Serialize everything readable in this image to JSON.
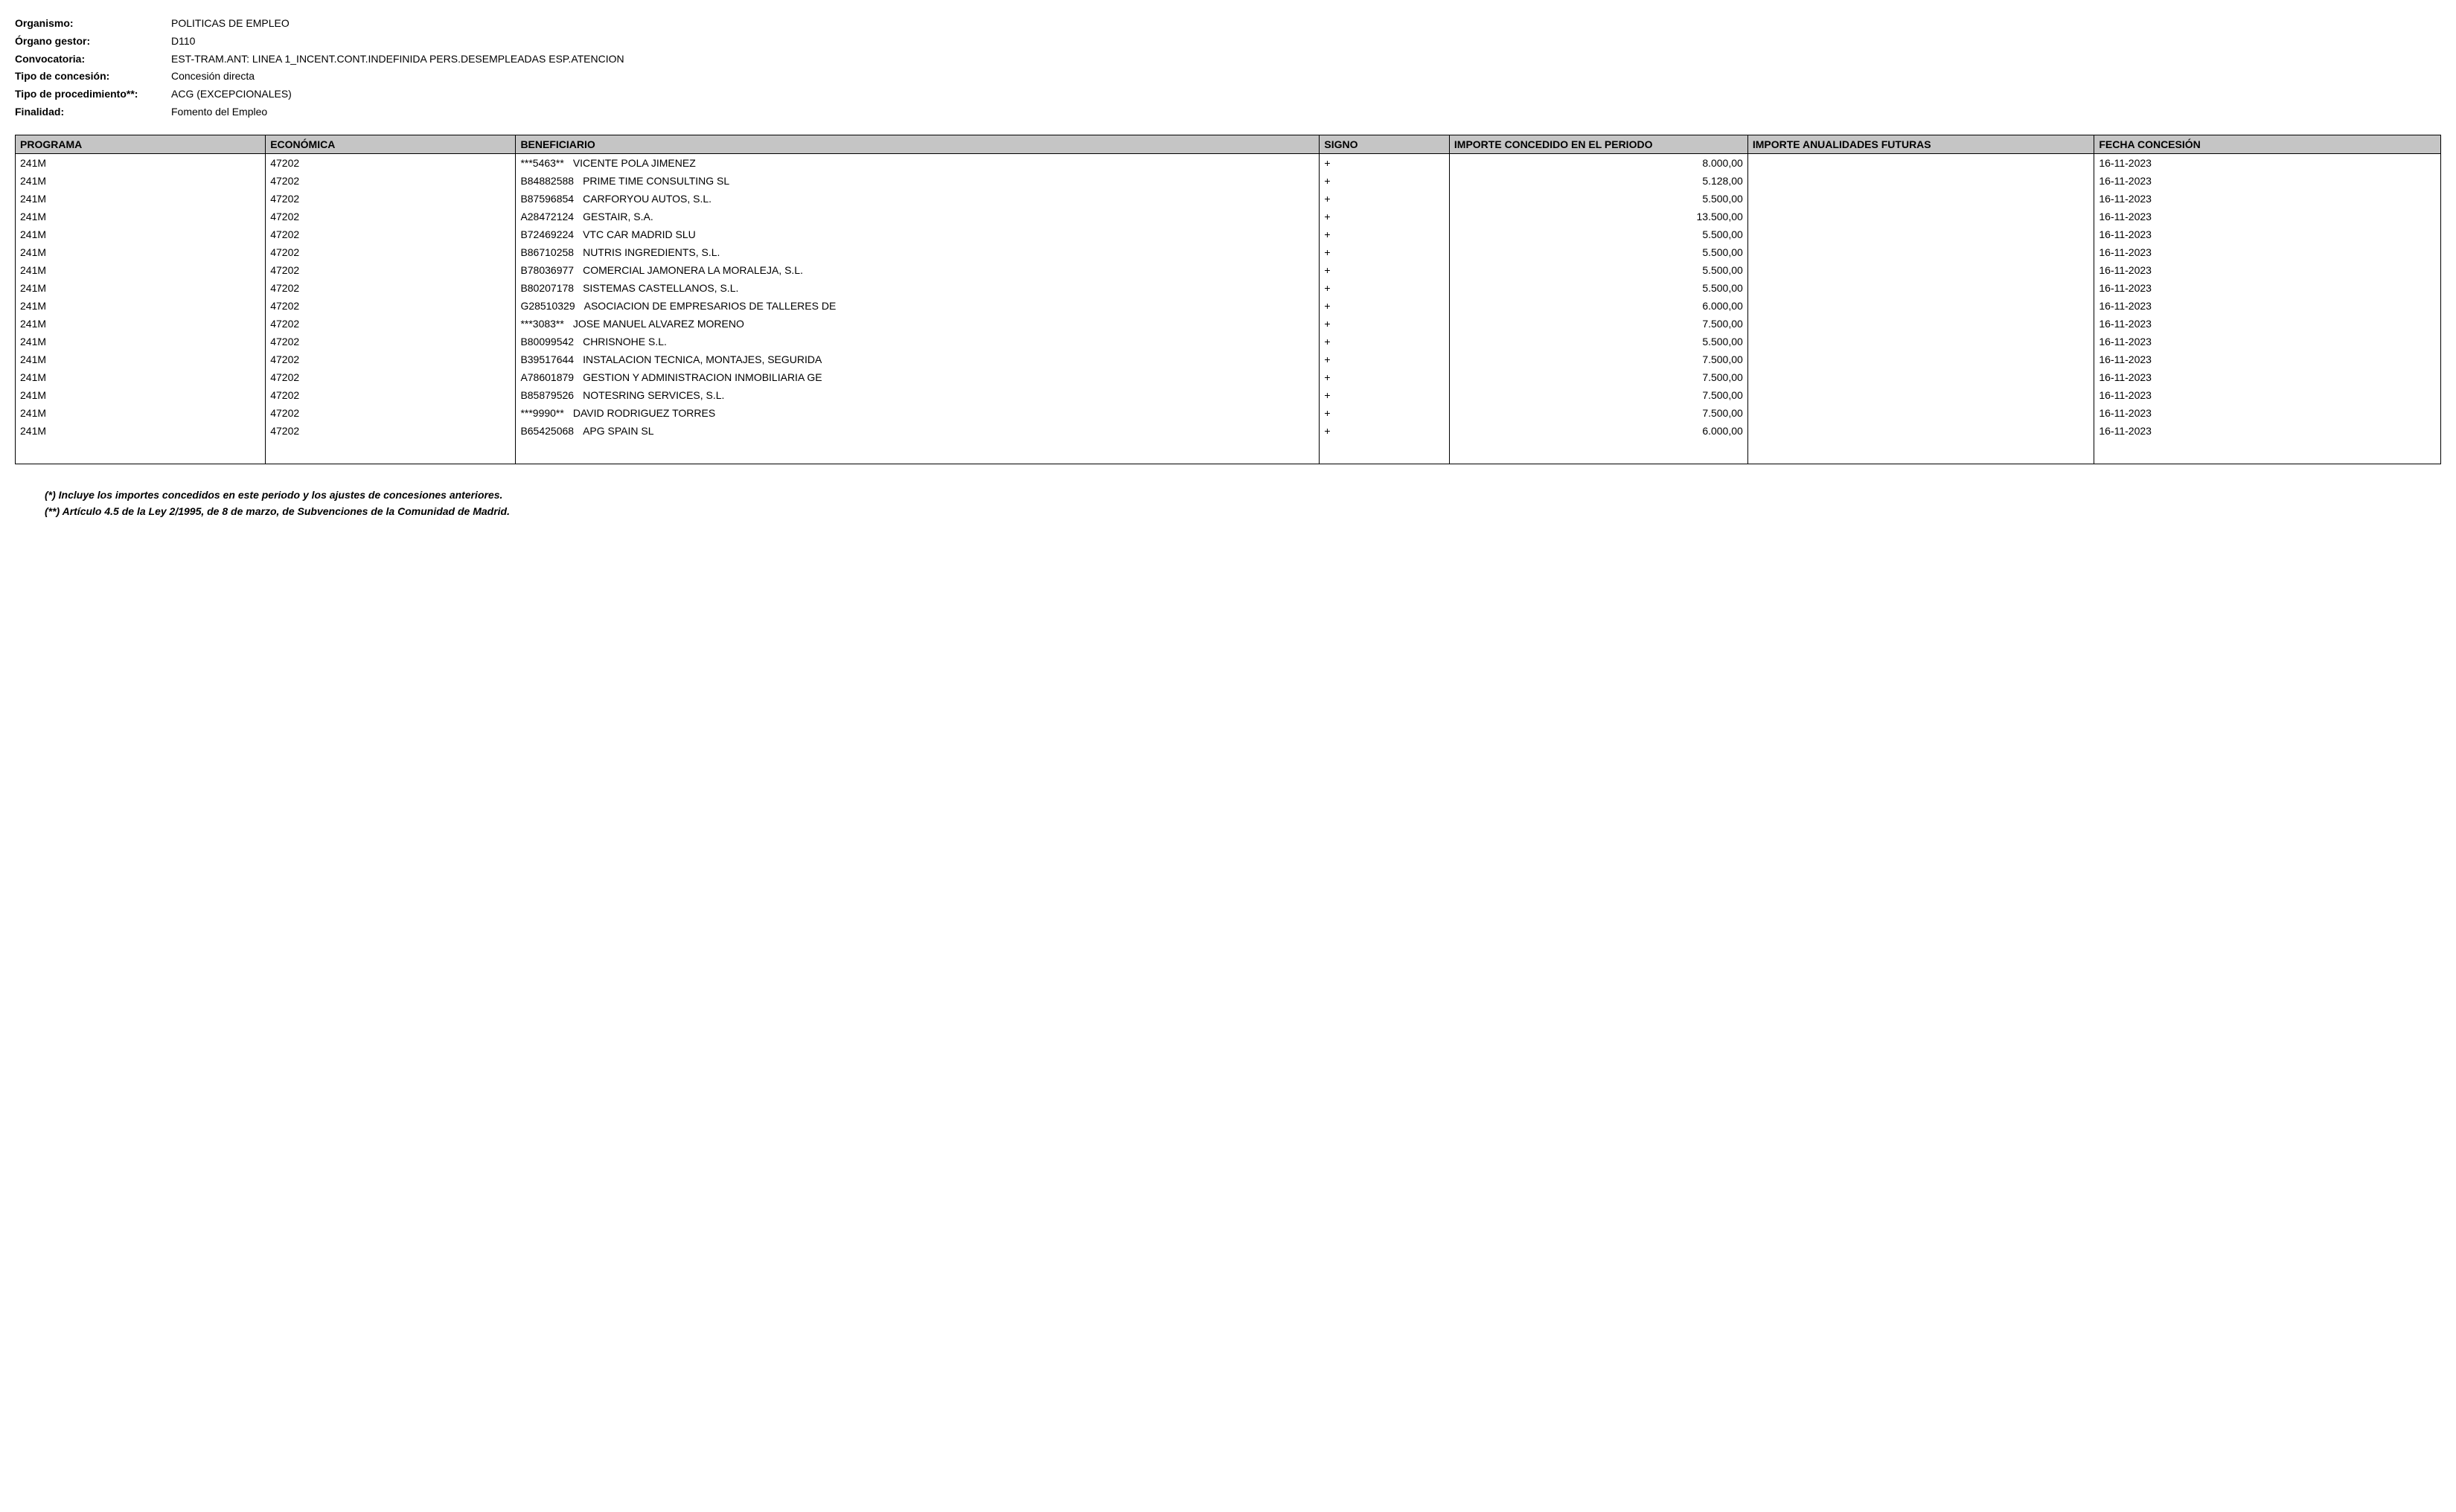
{
  "meta": {
    "organismo_label": "Organismo:",
    "organismo_value": "POLITICAS DE EMPLEO",
    "organo_gestor_label": "Órgano gestor:",
    "organo_gestor_value": "D110",
    "convocatoria_label": "Convocatoria:",
    "convocatoria_value": "EST-TRAM.ANT: LINEA 1_INCENT.CONT.INDEFINIDA PERS.DESEMPLEADAS ESP.ATENCION",
    "tipo_concesion_label": "Tipo de concesión:",
    "tipo_concesion_value": "Concesión directa",
    "tipo_procedimiento_label": "Tipo de procedimiento**:",
    "tipo_procedimiento_value": "ACG (EXCEPCIONALES)",
    "finalidad_label": "Finalidad:",
    "finalidad_value": "Fomento del Empleo"
  },
  "table": {
    "headers": {
      "programa": "PROGRAMA",
      "economica": "ECONÓMICA",
      "beneficiario": "BENEFICIARIO",
      "signo": "SIGNO",
      "importe_periodo": "IMPORTE CONCEDIDO EN EL PERIODO",
      "importe_futuras": "IMPORTE ANUALIDADES FUTURAS",
      "fecha": "FECHA CONCESIÓN"
    },
    "rows": [
      {
        "programa": "241M",
        "economica": "47202",
        "benef_nif": "***5463**",
        "benef_name": "VICENTE POLA JIMENEZ",
        "signo": "+",
        "importe_periodo": "8.000,00",
        "importe_futuras": "",
        "fecha": "16-11-2023"
      },
      {
        "programa": "241M",
        "economica": "47202",
        "benef_nif": "B84882588",
        "benef_name": "PRIME TIME CONSULTING SL",
        "signo": "+",
        "importe_periodo": "5.128,00",
        "importe_futuras": "",
        "fecha": "16-11-2023"
      },
      {
        "programa": "241M",
        "economica": "47202",
        "benef_nif": "B87596854",
        "benef_name": "CARFORYOU AUTOS, S.L.",
        "signo": "+",
        "importe_periodo": "5.500,00",
        "importe_futuras": "",
        "fecha": "16-11-2023"
      },
      {
        "programa": "241M",
        "economica": "47202",
        "benef_nif": "A28472124",
        "benef_name": "GESTAIR, S.A.",
        "signo": "+",
        "importe_periodo": "13.500,00",
        "importe_futuras": "",
        "fecha": "16-11-2023"
      },
      {
        "programa": "241M",
        "economica": "47202",
        "benef_nif": "B72469224",
        "benef_name": "VTC CAR MADRID SLU",
        "signo": "+",
        "importe_periodo": "5.500,00",
        "importe_futuras": "",
        "fecha": "16-11-2023"
      },
      {
        "programa": "241M",
        "economica": "47202",
        "benef_nif": "B86710258",
        "benef_name": "NUTRIS INGREDIENTS, S.L.",
        "signo": "+",
        "importe_periodo": "5.500,00",
        "importe_futuras": "",
        "fecha": "16-11-2023"
      },
      {
        "programa": "241M",
        "economica": "47202",
        "benef_nif": "B78036977",
        "benef_name": "COMERCIAL JAMONERA LA MORALEJA, S.L.",
        "signo": "+",
        "importe_periodo": "5.500,00",
        "importe_futuras": "",
        "fecha": "16-11-2023"
      },
      {
        "programa": "241M",
        "economica": "47202",
        "benef_nif": "B80207178",
        "benef_name": "SISTEMAS CASTELLANOS, S.L.",
        "signo": "+",
        "importe_periodo": "5.500,00",
        "importe_futuras": "",
        "fecha": "16-11-2023"
      },
      {
        "programa": "241M",
        "economica": "47202",
        "benef_nif": "G28510329",
        "benef_name": "ASOCIACION DE EMPRESARIOS DE TALLERES DE",
        "signo": "+",
        "importe_periodo": "6.000,00",
        "importe_futuras": "",
        "fecha": "16-11-2023"
      },
      {
        "programa": "241M",
        "economica": "47202",
        "benef_nif": "***3083**",
        "benef_name": "JOSE MANUEL ALVAREZ MORENO",
        "signo": "+",
        "importe_periodo": "7.500,00",
        "importe_futuras": "",
        "fecha": "16-11-2023"
      },
      {
        "programa": "241M",
        "economica": "47202",
        "benef_nif": "B80099542",
        "benef_name": "CHRISNOHE S.L.",
        "signo": "+",
        "importe_periodo": "5.500,00",
        "importe_futuras": "",
        "fecha": "16-11-2023"
      },
      {
        "programa": "241M",
        "economica": "47202",
        "benef_nif": "B39517644",
        "benef_name": "INSTALACION TECNICA, MONTAJES, SEGURIDA",
        "signo": "+",
        "importe_periodo": "7.500,00",
        "importe_futuras": "",
        "fecha": "16-11-2023"
      },
      {
        "programa": "241M",
        "economica": "47202",
        "benef_nif": "A78601879",
        "benef_name": "GESTION Y ADMINISTRACION INMOBILIARIA GE",
        "signo": "+",
        "importe_periodo": "7.500,00",
        "importe_futuras": "",
        "fecha": "16-11-2023"
      },
      {
        "programa": "241M",
        "economica": "47202",
        "benef_nif": "B85879526",
        "benef_name": "NOTESRING SERVICES, S.L.",
        "signo": "+",
        "importe_periodo": "7.500,00",
        "importe_futuras": "",
        "fecha": "16-11-2023"
      },
      {
        "programa": "241M",
        "economica": "47202",
        "benef_nif": "***9990**",
        "benef_name": "DAVID RODRIGUEZ TORRES",
        "signo": "+",
        "importe_periodo": "7.500,00",
        "importe_futuras": "",
        "fecha": "16-11-2023"
      },
      {
        "programa": "241M",
        "economica": "47202",
        "benef_nif": "B65425068",
        "benef_name": "APG SPAIN SL",
        "signo": "+",
        "importe_periodo": "6.000,00",
        "importe_futuras": "",
        "fecha": "16-11-2023"
      }
    ]
  },
  "footnotes": {
    "note1": "(*) Incluye los importes concedidos en este periodo y los ajustes de concesiones anteriores.",
    "note2": "(**) Artículo 4.5 de la Ley 2/1995, de 8 de marzo, de Subvenciones de la Comunidad de Madrid."
  }
}
